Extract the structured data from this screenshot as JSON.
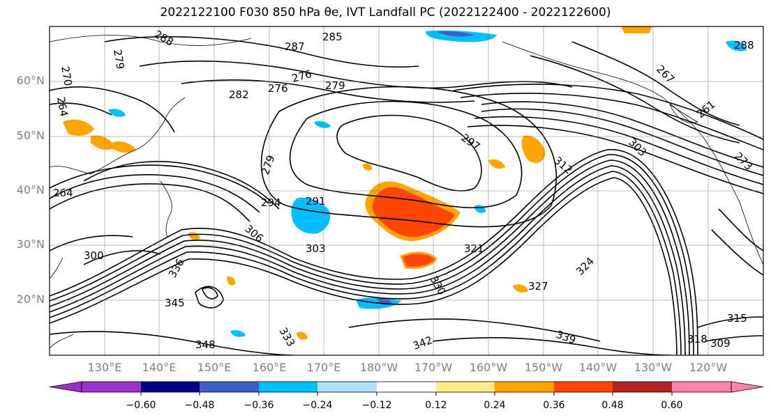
{
  "title": "2022122100 F030 850 hPa θe, IVT Landfall PC (2022122400 - 2022122600)",
  "lat_labels": [
    "60°N",
    "50°N",
    "40°N",
    "30°N",
    "20°N"
  ],
  "lon_labels": [
    "130°E",
    "140°E",
    "150°E",
    "160°E",
    "170°E",
    "180°W",
    "170°W",
    "160°W",
    "150°W",
    "140°W",
    "130°W",
    "120°W"
  ],
  "colorbar": {
    "tick_labels": [
      "−0.60",
      "−0.48",
      "−0.36",
      "−0.24",
      "−0.12",
      "0.12",
      "0.24",
      "0.36",
      "0.48",
      "0.60"
    ],
    "colors": [
      "#9932cc",
      "#00008b",
      "#3a5fcd",
      "#00bfff",
      "#b0e2ff",
      "#ffffff",
      "#ffec8b",
      "#ffa500",
      "#ff4500",
      "#b22222",
      "#ff82ab"
    ]
  },
  "contour_labels": [
    "288",
    "285",
    "287",
    "276",
    "279",
    "270",
    "264",
    "282",
    "276",
    "279",
    "264",
    "279",
    "294",
    "291",
    "306",
    "303",
    "300",
    "297",
    "312",
    "321",
    "324",
    "327",
    "330",
    "333",
    "336",
    "339",
    "342",
    "345",
    "348",
    "315",
    "309",
    "261",
    "267",
    "273",
    "288",
    "303",
    "318"
  ]
}
